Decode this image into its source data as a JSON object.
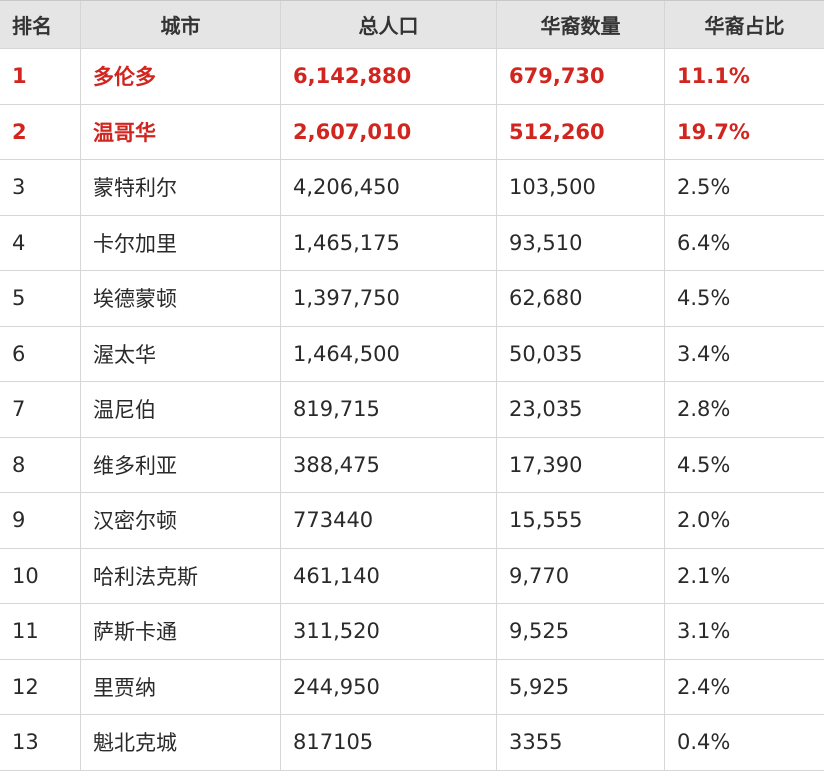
{
  "header": {
    "rank": "排名",
    "city": "城市",
    "population": "总人口",
    "chinese_population": "华裔数量",
    "chinese_ratio": "华裔占比"
  },
  "rows": [
    {
      "rank": "1",
      "city": "多伦多",
      "population": "6,142,880",
      "chinese_population": "679,730",
      "chinese_ratio": "11.1%"
    },
    {
      "rank": "2",
      "city": "温哥华",
      "population": "2,607,010",
      "chinese_population": "512,260",
      "chinese_ratio": "19.7%"
    },
    {
      "rank": "3",
      "city": "蒙特利尔",
      "population": "4,206,450",
      "chinese_population": "103,500",
      "chinese_ratio": "2.5%"
    },
    {
      "rank": "4",
      "city": "卡尔加里",
      "population": "1,465,175",
      "chinese_population": "93,510",
      "chinese_ratio": "6.4%"
    },
    {
      "rank": "5",
      "city": "埃德蒙顿",
      "population": "1,397,750",
      "chinese_population": "62,680",
      "chinese_ratio": "4.5%"
    },
    {
      "rank": "6",
      "city": "渥太华",
      "population": "1,464,500",
      "chinese_population": "50,035",
      "chinese_ratio": "3.4%"
    },
    {
      "rank": "7",
      "city": "温尼伯",
      "population": "819,715",
      "chinese_population": "23,035",
      "chinese_ratio": "2.8%"
    },
    {
      "rank": "8",
      "city": "维多利亚",
      "population": "388,475",
      "chinese_population": "17,390",
      "chinese_ratio": "4.5%"
    },
    {
      "rank": "9",
      "city": "汉密尔顿",
      "population": "773440",
      "chinese_population": "15,555",
      "chinese_ratio": "2.0%"
    },
    {
      "rank": "10",
      "city": "哈利法克斯",
      "population": "461,140",
      "chinese_population": "9,770",
      "chinese_ratio": "2.1%"
    },
    {
      "rank": "11",
      "city": "萨斯卡通",
      "population": "311,520",
      "chinese_population": "9,525",
      "chinese_ratio": "3.1%"
    },
    {
      "rank": "12",
      "city": "里贾纳",
      "population": "244,950",
      "chinese_population": "5,925",
      "chinese_ratio": "2.4%"
    },
    {
      "rank": "13",
      "city": "魁北克城",
      "population": "817105",
      "chinese_population": "3355",
      "chinese_ratio": "0.4%"
    }
  ],
  "colors": {
    "highlight_text": "#d0261f",
    "header_bg": "#e5e5e5",
    "grid_line": "#d6d6d6"
  }
}
